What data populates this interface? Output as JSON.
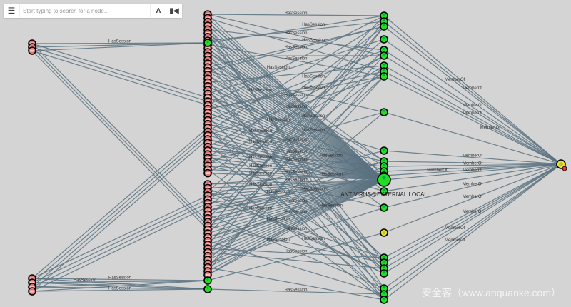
{
  "search": {
    "placeholder": "Start typing to search for a node...",
    "menu_icon": "hamburger-icon",
    "pathfinding_icon": "road-icon",
    "back_icon": "step-back-icon"
  },
  "graph": {
    "edge_labels": {
      "session": "HasSession",
      "member": "MemberOf"
    },
    "highlighted_node_label": "ANTIVIRUS@EXTERNAL.LOCAL",
    "colors": {
      "background": "#d4d4d4",
      "edge": "#5b7280",
      "computer": "#e57373",
      "user": "#22dd22",
      "group": "#e6e620",
      "node_border": "#000000"
    }
  },
  "watermark": "安全客（www.anquanke.com）"
}
